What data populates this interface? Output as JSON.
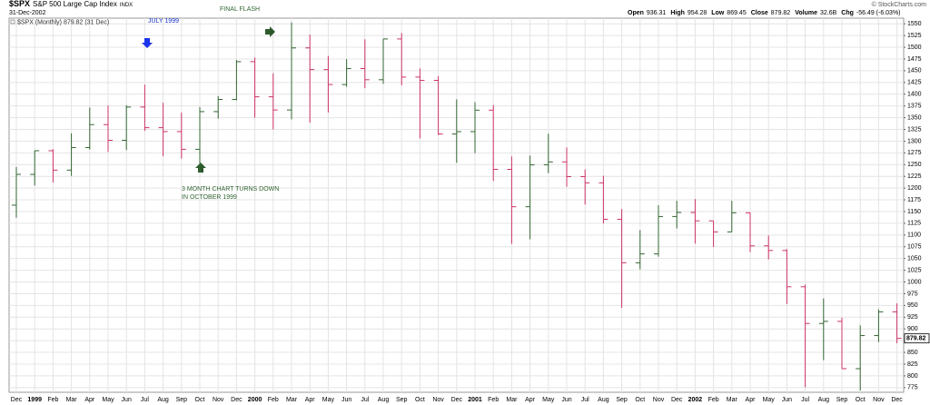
{
  "header": {
    "symbol": "$SPX",
    "name": "S&P 500 Large Cap Index",
    "exchange": "INDX",
    "date": "31-Dec-2002",
    "copyright": "© StockCharts.com",
    "stats": [
      {
        "label": "Open",
        "value": "936.31"
      },
      {
        "label": "High",
        "value": "954.28"
      },
      {
        "label": "Low",
        "value": "869.45"
      },
      {
        "label": "Close",
        "value": "879.82"
      },
      {
        "label": "Volume",
        "value": "32.6B"
      },
      {
        "label": "Chg",
        "value": "-56.49 (-6.03%)"
      }
    ]
  },
  "chart_data": {
    "type": "ohlc",
    "legend": "$SPX (Monthly) 879.82 (31 Dec)",
    "annotations": [
      "JULY 1999",
      "FINAL FLASH",
      "3 MONTH CHART TURNS DOWN",
      "IN OCTOBER 1999"
    ],
    "categories": [
      "Dec",
      "1999",
      "Feb",
      "Mar",
      "Apr",
      "May",
      "Jun",
      "Jul",
      "Aug",
      "Sep",
      "Oct",
      "Nov",
      "Dec",
      "2000",
      "Feb",
      "Mar",
      "Apr",
      "May",
      "Jun",
      "Jul",
      "Aug",
      "Sep",
      "Oct",
      "Nov",
      "Dec",
      "2001",
      "Feb",
      "Mar",
      "Apr",
      "May",
      "Jun",
      "Jul",
      "Aug",
      "Sep",
      "Oct",
      "Nov",
      "Dec",
      "2002",
      "Feb",
      "Mar",
      "Apr",
      "May",
      "Jun",
      "Jul",
      "Aug",
      "Sep",
      "Oct",
      "Nov",
      "Dec"
    ],
    "open": [
      1163.6,
      1229.2,
      1279.6,
      1238.3,
      1286.4,
      1335.2,
      1301.8,
      1372.7,
      1328.7,
      1320.4,
      1282.7,
      1362.9,
      1388.9,
      1469.3,
      1394.5,
      1366.4,
      1498.6,
      1452.4,
      1420.6,
      1454.6,
      1430.8,
      1517.7,
      1436.5,
      1429.4,
      1315.2,
      1320.3,
      1366.0,
      1239.9,
      1160.3,
      1249.5,
      1255.8,
      1224.4,
      1211.2,
      1133.6,
      1040.9,
      1059.8,
      1139.5,
      1148.1,
      1130.2,
      1106.7,
      1147.4,
      1076.9,
      1067.1,
      989.8,
      911.6,
      916.1,
      815.3,
      885.8,
      936.31
    ],
    "high": [
      1244.9,
      1280.0,
      1283.0,
      1316.6,
      1371.6,
      1375.9,
      1376.6,
      1420.3,
      1381.7,
      1361.0,
      1373.0,
      1396.0,
      1473.0,
      1478.0,
      1444.6,
      1552.9,
      1527.0,
      1481.5,
      1474.6,
      1517.0,
      1518.0,
      1530.0,
      1454.8,
      1438.5,
      1389.0,
      1383.0,
      1376.9,
      1267.4,
      1269.3,
      1315.9,
      1286.6,
      1239.8,
      1226.3,
      1155.4,
      1110.6,
      1163.4,
      1173.0,
      1176.6,
      1130.2,
      1173.0,
      1147.8,
      1099.0,
      1070.0,
      994.5,
      965.0,
      924.0,
      907.4,
      941.8,
      954.28
    ],
    "low": [
      1136.9,
      1205.5,
      1212.0,
      1226.0,
      1282.0,
      1277.0,
      1281.0,
      1322.0,
      1268.0,
      1263.0,
      1233.7,
      1348.0,
      1387.0,
      1350.0,
      1325.0,
      1346.6,
      1339.4,
      1361.0,
      1416.0,
      1413.0,
      1422.0,
      1419.0,
      1305.8,
      1313.0,
      1254.0,
      1274.6,
      1215.0,
      1081.0,
      1091.0,
      1232.0,
      1203.0,
      1165.0,
      1124.9,
      944.8,
      1026.8,
      1054.0,
      1114.0,
      1081.7,
      1074.4,
      1106.7,
      1063.5,
      1048.0,
      952.9,
      775.7,
      833.4,
      815.3,
      768.6,
      872.0,
      869.45
    ],
    "close": [
      1229.2,
      1279.6,
      1238.3,
      1286.4,
      1335.2,
      1301.8,
      1372.7,
      1328.7,
      1320.4,
      1282.7,
      1362.9,
      1388.9,
      1469.3,
      1394.5,
      1366.4,
      1498.6,
      1452.4,
      1420.6,
      1454.6,
      1430.8,
      1517.7,
      1436.5,
      1429.4,
      1315.2,
      1320.3,
      1366.0,
      1239.9,
      1160.3,
      1249.5,
      1255.8,
      1224.4,
      1211.2,
      1133.6,
      1040.9,
      1059.8,
      1139.5,
      1148.1,
      1130.2,
      1106.7,
      1147.4,
      1076.9,
      1067.1,
      989.8,
      911.6,
      916.1,
      815.3,
      885.8,
      936.3,
      879.82
    ],
    "up_color": "#336633",
    "down_color": "#cc3366",
    "ylim": [
      765,
      1562
    ],
    "yticks": [
      775,
      800,
      825,
      850,
      875,
      900,
      925,
      950,
      975,
      1000,
      1025,
      1050,
      1075,
      1100,
      1125,
      1150,
      1175,
      1200,
      1225,
      1250,
      1275,
      1300,
      1325,
      1350,
      1375,
      1400,
      1425,
      1450,
      1475,
      1500,
      1525,
      1550
    ],
    "grid": true
  }
}
